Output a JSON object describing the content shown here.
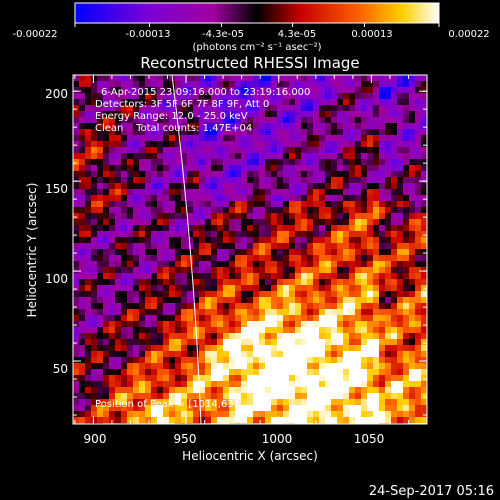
{
  "colorbar": {
    "ticks": [
      "-0.00022",
      "-0.00013",
      "-4.3e-05",
      "4.3e-05",
      "0.00013",
      "0.00022"
    ],
    "tick_values": [
      -0.00022,
      -0.00013,
      -4.3e-05,
      4.3e-05,
      0.00013,
      0.00022
    ],
    "range": [
      -0.00022,
      0.00022
    ],
    "units": "(photons cm⁻² s⁻¹ asec⁻²)",
    "colormap": [
      "#0000ff",
      "#7000e0",
      "#b000a0",
      "#000000",
      "#c00000",
      "#ff5000",
      "#ffc000",
      "#ffffff"
    ]
  },
  "chart_data": {
    "type": "heatmap",
    "title": "Reconstructed RHESSI Image",
    "xlabel": "Heliocentric X (arcsec)",
    "ylabel": "Heliocentric Y (arcsec)",
    "xlim": [
      889,
      1080
    ],
    "ylim": [
      15,
      209
    ],
    "xticks": [
      900,
      950,
      1000,
      1050
    ],
    "yticks": [
      50,
      100,
      150,
      200
    ],
    "annotations": [
      "6-Apr-2015 23:09:16.000 to 23:19:16.000",
      "Detectors: 3F 5F 6F 7F 8F 9F, Att 0",
      "Energy Range: 12.0 - 25.0 keV",
      "Clean    Total counts: 1.47E+04"
    ],
    "peak_label": "Position of Peak = [1014,63]",
    "peak_position": [
      1014,
      63
    ],
    "limb_color": "#ffffff"
  },
  "footer": {
    "timestamp": "24-Sep-2017 05:16"
  }
}
